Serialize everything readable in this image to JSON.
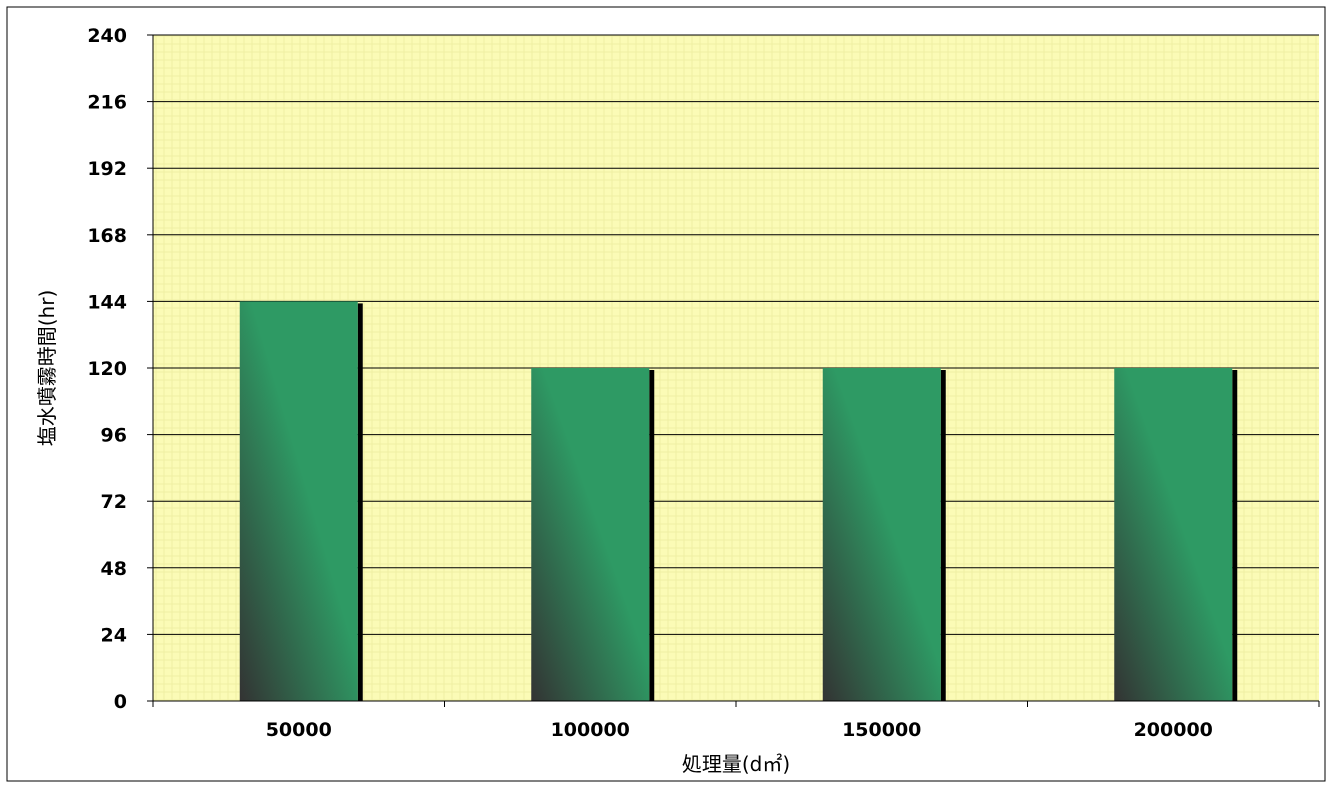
{
  "chart_data": {
    "type": "bar",
    "categories": [
      "50000",
      "100000",
      "150000",
      "200000"
    ],
    "values": [
      144,
      120,
      120,
      120
    ],
    "xlabel": "処理量(d㎡)",
    "ylabel": "塩水噴霧時間(hr)",
    "ylim": [
      0,
      240
    ],
    "yticks": [
      0,
      24,
      48,
      72,
      96,
      120,
      144,
      168,
      192,
      216,
      240
    ],
    "grid": true,
    "legend": "none",
    "colors": {
      "plot_background": "#fbfbb6",
      "bar_dark": "#333333",
      "bar_light": "#2e9a64",
      "bar_shadow": "#000000",
      "gridline": "#000000"
    }
  }
}
